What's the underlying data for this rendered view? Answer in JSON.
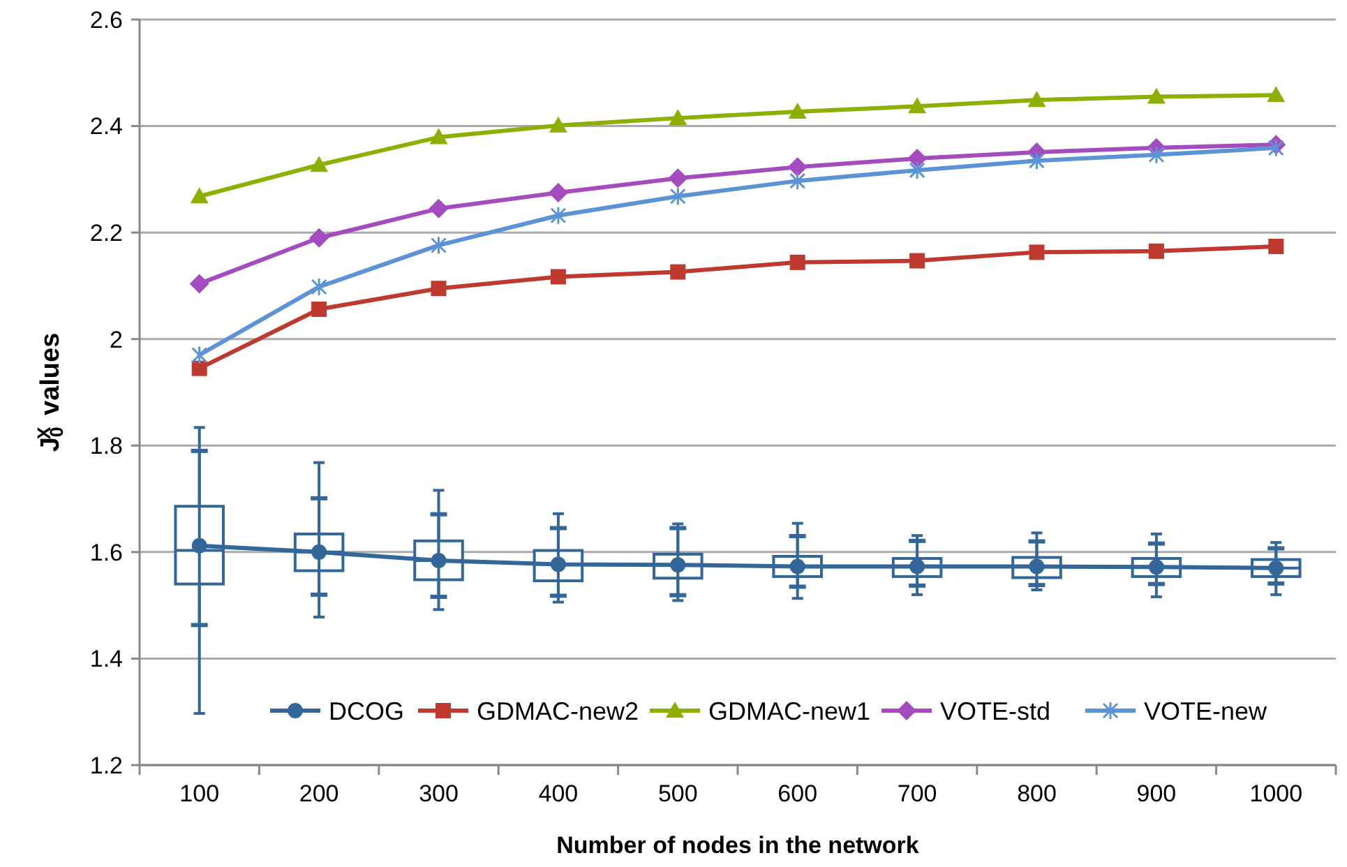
{
  "chart_data": {
    "type": "line",
    "xlabel": "Number of nodes in the network",
    "ylabel": "J$_{0}$$^{X}$ values",
    "categories": [
      "100",
      "200",
      "300",
      "400",
      "500",
      "600",
      "700",
      "800",
      "900",
      "1000"
    ],
    "ylim": [
      1.2,
      2.6
    ],
    "yticks": [
      1.2,
      1.4,
      1.6,
      1.8,
      2,
      2.2,
      2.4,
      2.6
    ],
    "grid": "y",
    "legend": "bottom",
    "series": [
      {
        "type": "box",
        "color": "#336699",
        "boxes": [
          {
            "low": 1.297,
            "q1": 1.54,
            "median": 1.603,
            "q3": 1.686,
            "high": 1.834
          },
          {
            "low": 1.478,
            "q1": 1.565,
            "median": 1.6,
            "q3": 1.634,
            "high": 1.768
          },
          {
            "low": 1.492,
            "q1": 1.548,
            "median": 1.584,
            "q3": 1.621,
            "high": 1.716
          },
          {
            "low": 1.506,
            "q1": 1.546,
            "median": 1.577,
            "q3": 1.603,
            "high": 1.672
          },
          {
            "low": 1.509,
            "q1": 1.551,
            "median": 1.576,
            "q3": 1.596,
            "high": 1.653
          },
          {
            "low": 1.513,
            "q1": 1.554,
            "median": 1.573,
            "q3": 1.592,
            "high": 1.654
          },
          {
            "low": 1.52,
            "q1": 1.554,
            "median": 1.573,
            "q3": 1.588,
            "high": 1.631
          },
          {
            "low": 1.529,
            "q1": 1.552,
            "median": 1.573,
            "q3": 1.59,
            "high": 1.636
          },
          {
            "low": 1.516,
            "q1": 1.554,
            "median": 1.572,
            "q3": 1.588,
            "high": 1.634
          },
          {
            "low": 1.52,
            "q1": 1.554,
            "median": 1.57,
            "q3": 1.586,
            "high": 1.618
          }
        ]
      },
      {
        "name": "DCOG",
        "color": "#336699",
        "marker": "circle",
        "values": [
          1.612,
          1.6,
          1.584,
          1.577,
          1.576,
          1.573,
          1.573,
          1.573,
          1.572,
          1.57
        ],
        "errors": [
          [
            1.463,
            1.79
          ],
          [
            1.52,
            1.701
          ],
          [
            1.516,
            1.671
          ],
          [
            1.518,
            1.645
          ],
          [
            1.519,
            1.645
          ],
          [
            1.535,
            1.63
          ],
          [
            1.537,
            1.621
          ],
          [
            1.538,
            1.62
          ],
          [
            1.54,
            1.616
          ],
          [
            1.541,
            1.607
          ]
        ]
      },
      {
        "name": "GDMAC-new2",
        "color": "#be3a2e",
        "marker": "square",
        "values": [
          1.945,
          2.056,
          2.095,
          2.117,
          2.126,
          2.144,
          2.147,
          2.163,
          2.165,
          2.174
        ]
      },
      {
        "name": "GDMAC-new1",
        "color": "#8cb000",
        "marker": "triangle",
        "values": [
          2.268,
          2.327,
          2.379,
          2.401,
          2.415,
          2.427,
          2.437,
          2.449,
          2.455,
          2.458
        ]
      },
      {
        "name": "VOTE-std",
        "color": "#a44cbf",
        "marker": "diamond",
        "values": [
          2.104,
          2.19,
          2.245,
          2.275,
          2.302,
          2.323,
          2.339,
          2.351,
          2.359,
          2.365
        ]
      },
      {
        "name": "VOTE-new",
        "color": "#5b93d6",
        "marker": "cross",
        "values": [
          1.97,
          2.098,
          2.176,
          2.232,
          2.268,
          2.297,
          2.317,
          2.335,
          2.346,
          2.359
        ]
      }
    ]
  }
}
